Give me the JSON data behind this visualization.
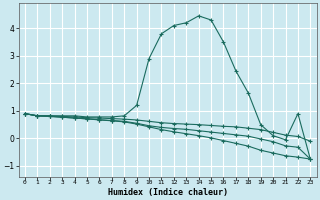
{
  "xlabel": "Humidex (Indice chaleur)",
  "ylabel": "",
  "background_color": "#cce9f0",
  "line_color": "#1a6b5e",
  "grid_color": "#ffffff",
  "xlim": [
    -0.5,
    23.5
  ],
  "ylim": [
    -1.4,
    4.9
  ],
  "xticks": [
    0,
    1,
    2,
    3,
    4,
    5,
    6,
    7,
    8,
    9,
    10,
    11,
    12,
    13,
    14,
    15,
    16,
    17,
    18,
    19,
    20,
    21,
    22,
    23
  ],
  "yticks": [
    -1,
    0,
    1,
    2,
    3,
    4
  ],
  "lines": [
    {
      "x": [
        0,
        1,
        2,
        3,
        4,
        5,
        6,
        7,
        8,
        9,
        10,
        11,
        12,
        13,
        14,
        15,
        16,
        17,
        18,
        19,
        20,
        21,
        22,
        23
      ],
      "y": [
        0.9,
        0.82,
        0.82,
        0.82,
        0.82,
        0.78,
        0.78,
        0.78,
        0.82,
        1.2,
        2.9,
        3.8,
        4.1,
        4.2,
        4.45,
        4.3,
        3.5,
        2.45,
        1.65,
        0.5,
        0.1,
        -0.05,
        0.9,
        -0.75
      ]
    },
    {
      "x": [
        0,
        1,
        2,
        3,
        4,
        5,
        6,
        7,
        8,
        9,
        10,
        11,
        12,
        13,
        14,
        15,
        16,
        17,
        18,
        19,
        20,
        21,
        22,
        23
      ],
      "y": [
        0.9,
        0.82,
        0.82,
        0.8,
        0.78,
        0.75,
        0.74,
        0.72,
        0.7,
        0.67,
        0.62,
        0.57,
        0.54,
        0.52,
        0.5,
        0.47,
        0.44,
        0.42,
        0.37,
        0.32,
        0.22,
        0.12,
        0.07,
        -0.1
      ]
    },
    {
      "x": [
        0,
        1,
        2,
        3,
        4,
        5,
        6,
        7,
        8,
        9,
        10,
        11,
        12,
        13,
        14,
        15,
        16,
        17,
        18,
        19,
        20,
        21,
        22,
        23
      ],
      "y": [
        0.9,
        0.82,
        0.8,
        0.77,
        0.74,
        0.71,
        0.68,
        0.65,
        0.62,
        0.55,
        0.46,
        0.4,
        0.36,
        0.33,
        0.28,
        0.23,
        0.18,
        0.13,
        0.08,
        -0.02,
        -0.12,
        -0.27,
        -0.32,
        -0.75
      ]
    },
    {
      "x": [
        0,
        1,
        2,
        3,
        4,
        5,
        6,
        7,
        8,
        9,
        10,
        11,
        12,
        13,
        14,
        15,
        16,
        17,
        18,
        19,
        20,
        21,
        22,
        23
      ],
      "y": [
        0.9,
        0.82,
        0.8,
        0.77,
        0.74,
        0.71,
        0.67,
        0.64,
        0.6,
        0.52,
        0.42,
        0.32,
        0.24,
        0.17,
        0.1,
        0.02,
        -0.08,
        -0.18,
        -0.28,
        -0.43,
        -0.53,
        -0.63,
        -0.68,
        -0.75
      ]
    }
  ]
}
